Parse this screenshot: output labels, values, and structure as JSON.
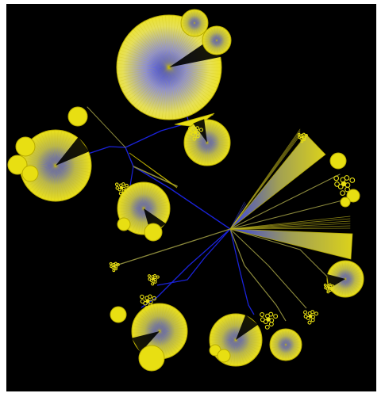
{
  "diagram": {
    "type": "radial-tree",
    "background_color": "#000000",
    "page_color": "#ffffff",
    "node_color": "#e8df12",
    "node_edge_color": "#b8ac00",
    "link_color_near_root": "#1a22d8",
    "link_color_far": "#8c8a3c",
    "cluster_center_color": "#2b35ff"
  }
}
